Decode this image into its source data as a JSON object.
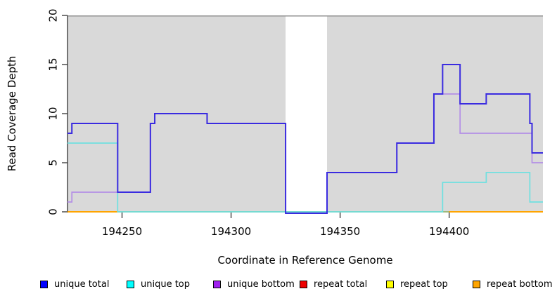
{
  "chart_data": {
    "type": "line",
    "subtype": "step-after",
    "title": "",
    "xlabel": "Coordinate in Reference Genome",
    "ylabel": "Read Coverage Depth",
    "xlim": [
      194225,
      194443
    ],
    "ylim": [
      0,
      20
    ],
    "xticks": [
      194250,
      194300,
      194350,
      194400
    ],
    "yticks": [
      0,
      5,
      10,
      15,
      20
    ],
    "grid": false,
    "legend_position": "bottom",
    "background_shading": {
      "color": "#d9d9d9",
      "top_border_color": "#909090",
      "regions": [
        [
          194225,
          194325
        ],
        [
          194344,
          194443
        ]
      ],
      "unshaded_gap": [
        194325,
        194344
      ]
    },
    "baseline_segments": [
      {
        "from": 194225,
        "to": 194248,
        "color": "#FFA500"
      },
      {
        "from": 194248,
        "to": 194400,
        "color": "#8FBC8F",
        "note": "overlapping zero-coverage lines render pale green"
      },
      {
        "from": 194400,
        "to": 194443,
        "color": "#FFA500"
      }
    ],
    "series": [
      {
        "name": "repeat total",
        "line_color": "#DD0000",
        "steps": [
          [
            194225,
            0
          ]
        ]
      },
      {
        "name": "repeat top",
        "line_color": "#FFFF00",
        "steps": [
          [
            194225,
            0
          ]
        ]
      },
      {
        "name": "repeat bottom",
        "line_color": "#FFA500",
        "steps": [
          [
            194225,
            0
          ]
        ]
      },
      {
        "name": "unique bottom",
        "line_color": "#b48ee6",
        "zero_dip": 2,
        "steps": [
          [
            194225,
            1
          ],
          [
            194227,
            2
          ],
          [
            194263,
            9
          ],
          [
            194265,
            10
          ],
          [
            194289,
            9
          ],
          [
            194325,
            0
          ],
          [
            194344,
            4
          ],
          [
            194376,
            7
          ],
          [
            194393,
            12
          ],
          [
            194405,
            8
          ],
          [
            194438,
            5
          ]
        ]
      },
      {
        "name": "unique top",
        "line_color": "#6fe0e0",
        "steps": [
          [
            194225,
            7
          ],
          [
            194248,
            0
          ],
          [
            194397,
            3
          ],
          [
            194417,
            4
          ],
          [
            194437,
            1
          ]
        ]
      },
      {
        "name": "unique total",
        "line_color": "#3a2be0",
        "zero_dip": 2,
        "steps": [
          [
            194225,
            8
          ],
          [
            194227,
            9
          ],
          [
            194248,
            2
          ],
          [
            194263,
            9
          ],
          [
            194265,
            10
          ],
          [
            194289,
            9
          ],
          [
            194325,
            0
          ],
          [
            194344,
            4
          ],
          [
            194376,
            7
          ],
          [
            194393,
            12
          ],
          [
            194397,
            15
          ],
          [
            194405,
            11
          ],
          [
            194417,
            12
          ],
          [
            194437,
            9
          ],
          [
            194438,
            6
          ]
        ]
      }
    ],
    "legend": [
      {
        "label": "unique total",
        "color": "#0000FF"
      },
      {
        "label": "unique top",
        "color": "#00FFFF"
      },
      {
        "label": "unique bottom",
        "color": "#A020F0"
      },
      {
        "label": "repeat total",
        "color": "#EE0000"
      },
      {
        "label": "repeat top",
        "color": "#FFFF00"
      },
      {
        "label": "repeat bottom",
        "color": "#FFA500"
      }
    ]
  }
}
